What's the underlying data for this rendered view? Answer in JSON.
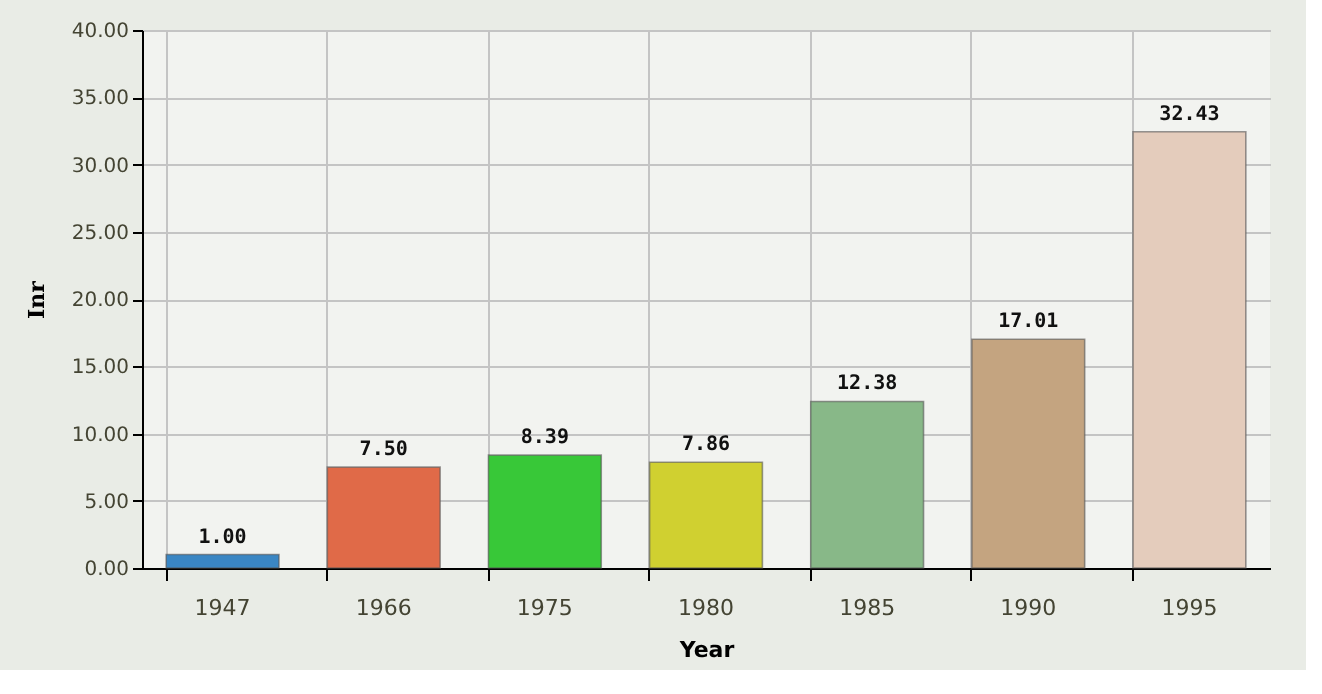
{
  "chart_data": {
    "type": "bar",
    "xlabel": "Year",
    "ylabel": "Inr",
    "categories": [
      "1947",
      "1966",
      "1975",
      "1980",
      "1985",
      "1990",
      "1995"
    ],
    "values": [
      1.0,
      7.5,
      8.39,
      7.86,
      12.38,
      17.01,
      32.43
    ],
    "colors": [
      "#3a86c4",
      "#e06a48",
      "#38c838",
      "#d0d030",
      "#88b888",
      "#c4a480",
      "#e4ccbc"
    ],
    "value_labels": [
      "1.00",
      "7.50",
      "8.39",
      "7.86",
      "12.38",
      "17.01",
      "32.43"
    ],
    "ylim": [
      0,
      40
    ],
    "yticks": [
      {
        "value": 0,
        "label": "0.00"
      },
      {
        "value": 5,
        "label": "5.00"
      },
      {
        "value": 10,
        "label": "10.00"
      },
      {
        "value": 15,
        "label": "15.00"
      },
      {
        "value": 20,
        "label": "20.00"
      },
      {
        "value": 25,
        "label": "25.00"
      },
      {
        "value": 30,
        "label": "30.00"
      },
      {
        "value": 35,
        "label": "35.00"
      },
      {
        "value": 40,
        "label": "40.00"
      }
    ],
    "grid": true
  }
}
